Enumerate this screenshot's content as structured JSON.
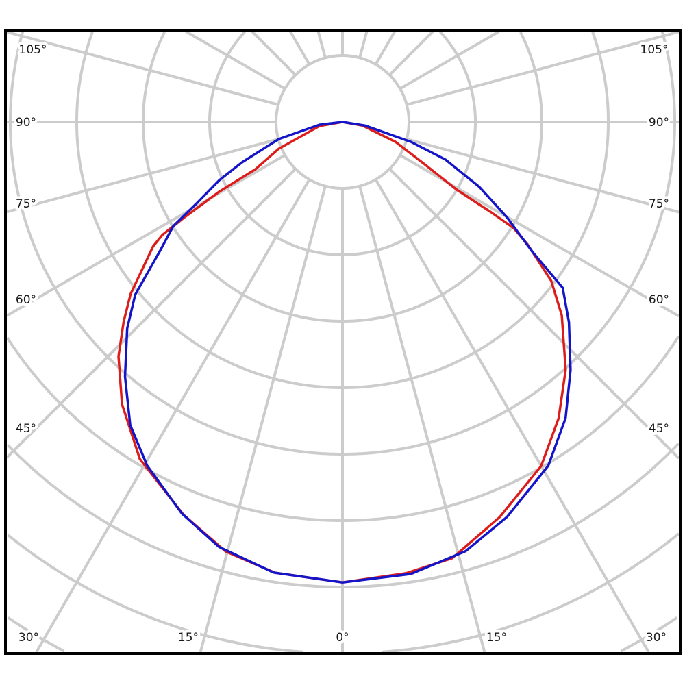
{
  "chart_data": {
    "type": "polar",
    "angle_zero": "down",
    "angle_unit": "deg",
    "angle_ticks": {
      "left": [
        "105°",
        "90°",
        "75°",
        "60°",
        "45°",
        "30°",
        "15°"
      ],
      "bottom": [
        "0°"
      ],
      "right": [
        "15°",
        "30°",
        "45°",
        "60°",
        "75°",
        "90°",
        "105°"
      ]
    },
    "angular_grid_step": 15,
    "radial_grid_rings": 10,
    "radial_labels": "none",
    "grid": true,
    "legend": "none",
    "series": [
      {
        "color": "#dd1c1c",
        "left": [
          [
            0,
            6.93
          ],
          [
            8.5,
            6.86
          ],
          [
            15.2,
            6.7
          ],
          [
            22,
            6.38
          ],
          [
            31,
            5.92
          ],
          [
            38,
            5.39
          ],
          [
            43.7,
            4.88
          ],
          [
            47.6,
            4.46
          ],
          [
            50.9,
            4.11
          ],
          [
            56.7,
            3.41
          ],
          [
            57.9,
            3.2
          ],
          [
            58.9,
            2.77
          ],
          [
            60.5,
            2.13
          ],
          [
            61.5,
            1.49
          ],
          [
            67.2,
            1.04
          ],
          [
            80,
            0.35
          ],
          [
            90,
            0
          ]
        ],
        "right": [
          [
            0,
            6.93
          ],
          [
            8,
            6.86
          ],
          [
            14.1,
            6.77
          ],
          [
            21.7,
            6.4
          ],
          [
            30,
            5.98
          ],
          [
            36.1,
            5.52
          ],
          [
            42,
            5.02
          ],
          [
            48.6,
            4.4
          ],
          [
            52.7,
            3.95
          ],
          [
            56.5,
            3.34
          ],
          [
            58.2,
            3.03
          ],
          [
            58.7,
            2.62
          ],
          [
            59.3,
            2.0
          ],
          [
            62.7,
            1.39
          ],
          [
            69.4,
            0.85
          ],
          [
            80,
            0.3
          ],
          [
            90,
            0
          ]
        ]
      },
      {
        "color": "#1414c8",
        "left": [
          [
            0,
            6.93
          ],
          [
            8.7,
            6.86
          ],
          [
            16.2,
            6.66
          ],
          [
            22.3,
            6.37
          ],
          [
            29.6,
            5.95
          ],
          [
            35,
            5.57
          ],
          [
            40.5,
            5.04
          ],
          [
            46.2,
            4.49
          ],
          [
            50.2,
            4.06
          ],
          [
            54.7,
            3.37
          ],
          [
            58.4,
            2.99
          ],
          [
            60.8,
            2.52
          ],
          [
            64.7,
            2.05
          ],
          [
            68.1,
            1.63
          ],
          [
            75,
            0.99
          ],
          [
            83,
            0.35
          ],
          [
            90,
            0
          ]
        ],
        "right": [
          [
            0,
            6.93
          ],
          [
            8.6,
            6.88
          ],
          [
            16,
            6.72
          ],
          [
            22.6,
            6.44
          ],
          [
            30.9,
            6.03
          ],
          [
            37,
            5.58
          ],
          [
            42.6,
            5.07
          ],
          [
            48.5,
            4.55
          ],
          [
            53,
            4.15
          ],
          [
            55.7,
            3.45
          ],
          [
            59.9,
            2.86
          ],
          [
            64.6,
            2.28
          ],
          [
            69.9,
            1.65
          ],
          [
            73.8,
            1.07
          ],
          [
            81,
            0.34
          ],
          [
            90,
            0
          ]
        ]
      }
    ],
    "colors": {
      "grid": "#cccccc",
      "frame": "#000000"
    }
  }
}
